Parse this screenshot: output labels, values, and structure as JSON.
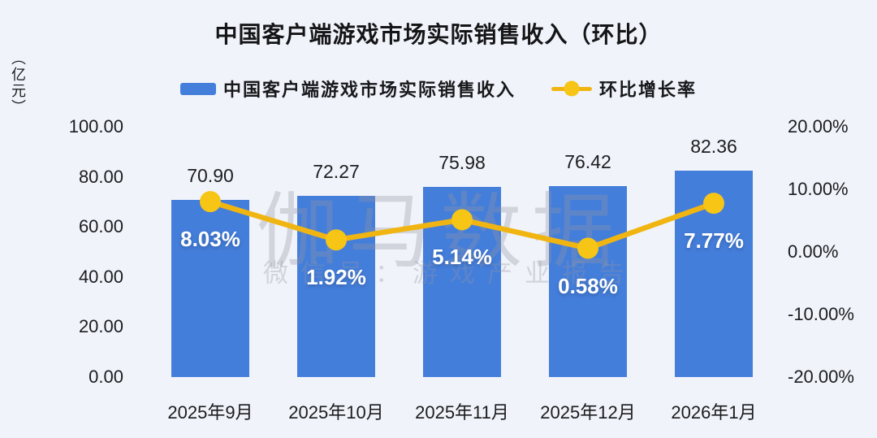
{
  "title": "中国客户端游戏市场实际销售收入（环比）",
  "y_axis_unit": "（亿元）",
  "legend": {
    "bar_label": "中国客户端游戏市场实际销售收入",
    "line_label": "环比增长率"
  },
  "watermark": {
    "line1": "伽马数据",
    "line2": "微信号：游戏产业报告"
  },
  "colors": {
    "background": "#F0F3FA",
    "bar": "#447EDB",
    "line": "#F1B512",
    "marker": "#F6C515",
    "text": "#1C1C1E",
    "percent_text": "#FFFFFF",
    "watermark": "rgba(145,150,160,0.33)"
  },
  "chart_data": {
    "type": "combo",
    "title": "中国客户端游戏市场实际销售收入（环比）",
    "categories": [
      "2025年9月",
      "2025年10月",
      "2025年11月",
      "2025年12月",
      "2026年1月"
    ],
    "series": [
      {
        "name": "中国客户端游戏市场实际销售收入",
        "type": "bar",
        "axis": "left",
        "values": [
          70.9,
          72.27,
          75.98,
          76.42,
          82.36
        ],
        "labels": [
          "70.90",
          "72.27",
          "75.98",
          "76.42",
          "82.36"
        ]
      },
      {
        "name": "环比增长率",
        "type": "line",
        "axis": "right",
        "values": [
          8.03,
          1.92,
          5.14,
          0.58,
          7.77
        ],
        "labels": [
          "8.03%",
          "1.92%",
          "5.14%",
          "0.58%",
          "7.77%"
        ]
      }
    ],
    "left_axis": {
      "unit": "亿元",
      "range": [
        0,
        100
      ],
      "ticks": [
        100,
        80,
        60,
        40,
        20,
        0
      ],
      "tick_labels": [
        "100.00",
        "80.00",
        "60.00",
        "40.00",
        "20.00",
        "0.00"
      ]
    },
    "right_axis": {
      "range": [
        -20,
        20
      ],
      "ticks": [
        20,
        10,
        0,
        -10,
        -20
      ],
      "tick_labels": [
        "20.00%",
        "10.00%",
        "0.00%",
        "-10.00%",
        "-20.00%"
      ]
    },
    "grid": false,
    "legend_position": "top"
  }
}
